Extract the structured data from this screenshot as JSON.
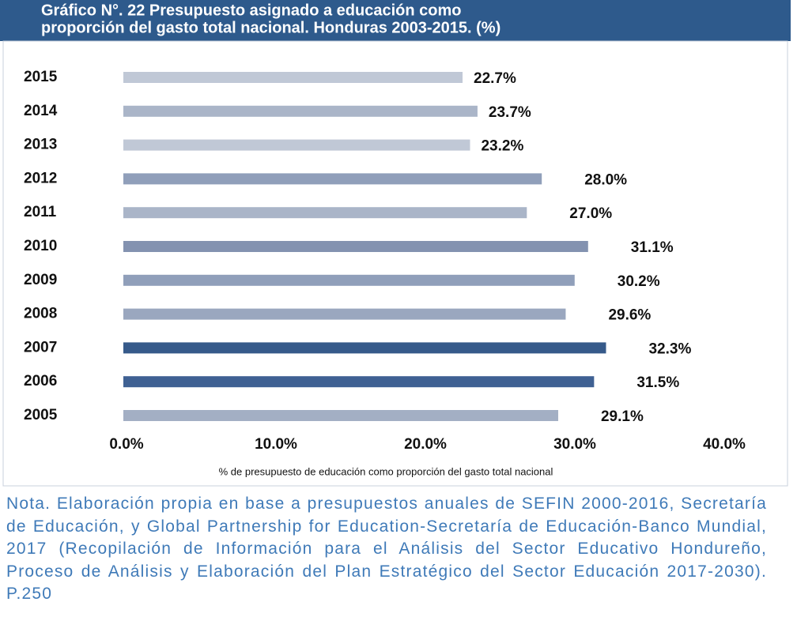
{
  "chart_data": {
    "type": "bar",
    "orientation": "horizontal",
    "title": [
      "Gráfico N°. 22  Presupuesto asignado a educación como",
      "proporción del gasto total nacional. Honduras 2003-2015. (%)"
    ],
    "categories": [
      "2015",
      "2014",
      "2013",
      "2012",
      "2011",
      "2010",
      "2009",
      "2008",
      "2007",
      "2006",
      "2005"
    ],
    "values": [
      22.7,
      23.7,
      23.2,
      28.0,
      27.0,
      31.1,
      30.2,
      29.6,
      32.3,
      31.5,
      29.1
    ],
    "value_labels": [
      "22.7%",
      "23.7%",
      "23.2%",
      "28.0%",
      "27.0%",
      "31.1%",
      "30.2%",
      "29.6%",
      "32.3%",
      "31.5%",
      "29.1%"
    ],
    "colors": [
      "#c0c8d6",
      "#aab5c8",
      "#c0c8d6",
      "#909fba",
      "#aab5c8",
      "#8392b0",
      "#909fba",
      "#9aa7bf",
      "#365a8a",
      "#3f6193",
      "#a3afc4"
    ],
    "xlim": [
      0,
      40
    ],
    "xticks": [
      {
        "value": 0,
        "label": "0.0%"
      },
      {
        "value": 10,
        "label": "10.0%"
      },
      {
        "value": 20,
        "label": "20.0%"
      },
      {
        "value": 30,
        "label": "30.0%"
      },
      {
        "value": 40,
        "label": "40.0%"
      }
    ],
    "xlabel": "% de presupuesto de educación como proporción del gasto total nacional",
    "grid": false
  },
  "note": "Nota. Elaboración propia en base a presupuestos anuales de SEFIN 2000-2016, Secretaría de Educación, y Global Partnership for Education-Secretaría de Educación-Banco Mundial, 2017 (Recopilación de Información para el Análisis del Sector Educativo Hondureño, Proceso de Análisis y Elaboración del Plan Estratégico del Sector Educación 2017-2030). P.250"
}
